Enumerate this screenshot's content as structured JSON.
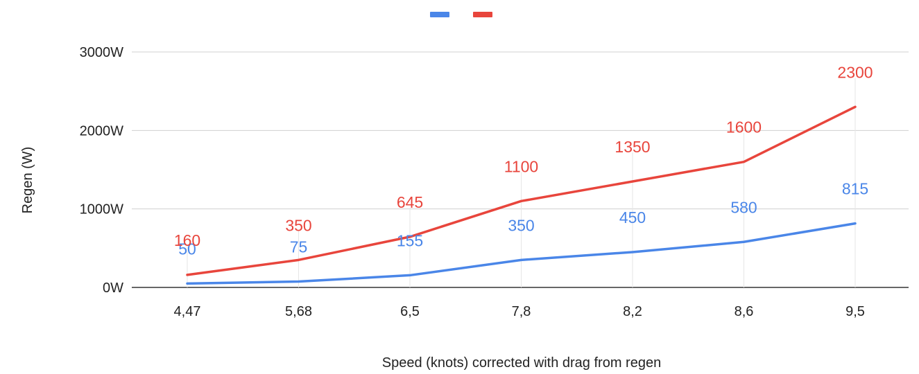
{
  "chart_data": {
    "type": "line",
    "title": "",
    "xlabel": "Speed (knots) corrected with drag from regen",
    "ylabel": "Regen (W)",
    "categories": [
      "4,47",
      "5,68",
      "6,5",
      "7,8",
      "8,2",
      "8,6",
      "9,5"
    ],
    "ylim": [
      0,
      3000
    ],
    "yticks": [
      {
        "value": 0,
        "label": "0W"
      },
      {
        "value": 1000,
        "label": "1000W"
      },
      {
        "value": 2000,
        "label": "2000W"
      },
      {
        "value": 3000,
        "label": "3000W"
      }
    ],
    "grid": true,
    "legend": "top-center",
    "series": [
      {
        "color": "#4a86e8",
        "values": [
          50,
          75,
          155,
          350,
          450,
          580,
          815
        ],
        "labels": [
          "50",
          "75",
          "155",
          "350",
          "450",
          "580",
          "815"
        ]
      },
      {
        "color": "#e8453c",
        "values": [
          160,
          350,
          645,
          1100,
          1350,
          1600,
          2300
        ],
        "labels": [
          "160",
          "350",
          "645",
          "1100",
          "1350",
          "1600",
          "2300"
        ]
      }
    ],
    "gridline_color": "#d0d0d0",
    "baseline_color": "#333333"
  }
}
